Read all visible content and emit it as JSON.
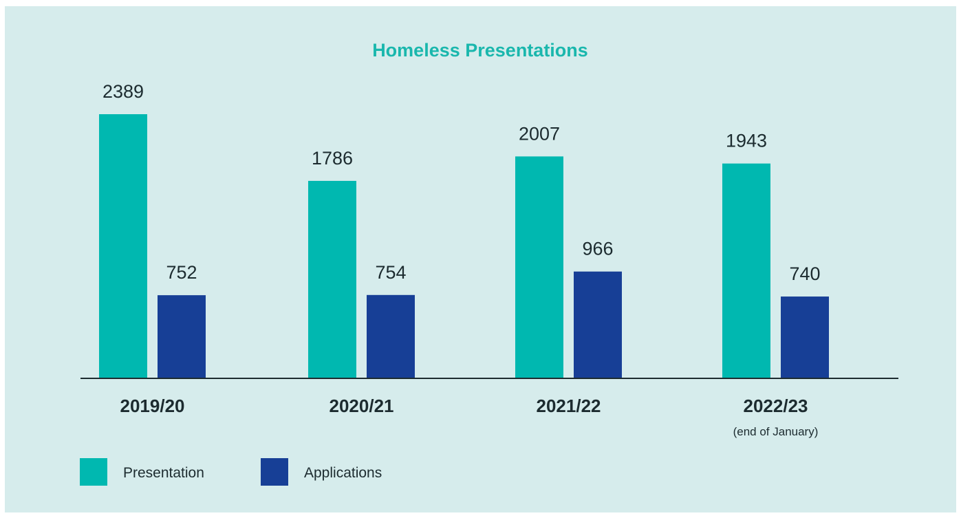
{
  "chart_data": {
    "type": "bar",
    "title": "Homeless Presentations",
    "categories": [
      "2019/20",
      "2020/21",
      "2021/22",
      "2022/23"
    ],
    "category_notes": [
      "",
      "",
      "",
      "(end of January)"
    ],
    "series": [
      {
        "name": "Presentation",
        "color": "#00b8b0",
        "values": [
          2389,
          1786,
          2007,
          1943
        ]
      },
      {
        "name": "Applications",
        "color": "#173f96",
        "values": [
          752,
          754,
          966,
          740
        ]
      }
    ],
    "data_labels": true,
    "grid": false,
    "legend": "bottom-left",
    "title_color": "#1ab7ad",
    "background_color": "#d6ecec"
  }
}
